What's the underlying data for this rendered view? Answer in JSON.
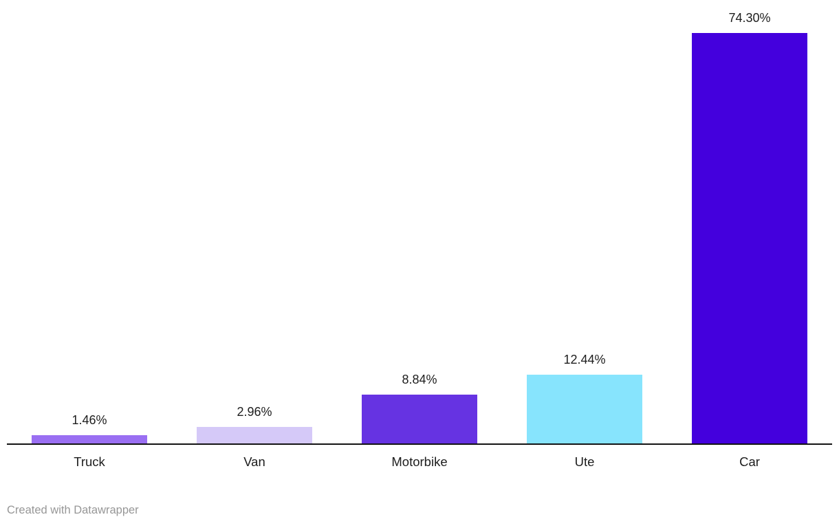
{
  "chart_data": {
    "type": "bar",
    "title": "",
    "xlabel": "",
    "ylabel": "",
    "categories": [
      "Truck",
      "Van",
      "Motorbike",
      "Ute",
      "Car"
    ],
    "values": [
      1.46,
      2.96,
      8.84,
      12.44,
      74.3
    ],
    "value_labels": [
      "1.46%",
      "2.96%",
      "8.84%",
      "12.44%",
      "74.30%"
    ],
    "bar_colors": [
      "#9a6ff2",
      "#d5c9f8",
      "#6633e2",
      "#87e4fd",
      "#4400dd"
    ],
    "ylim": [
      0,
      74.3
    ],
    "grid": false,
    "legend": false,
    "axis_line_color": "#131313",
    "value_label_color": "#1d1d1d",
    "category_label_color": "#1d1d1d"
  },
  "footer": {
    "attribution": "Created with Datawrapper"
  }
}
